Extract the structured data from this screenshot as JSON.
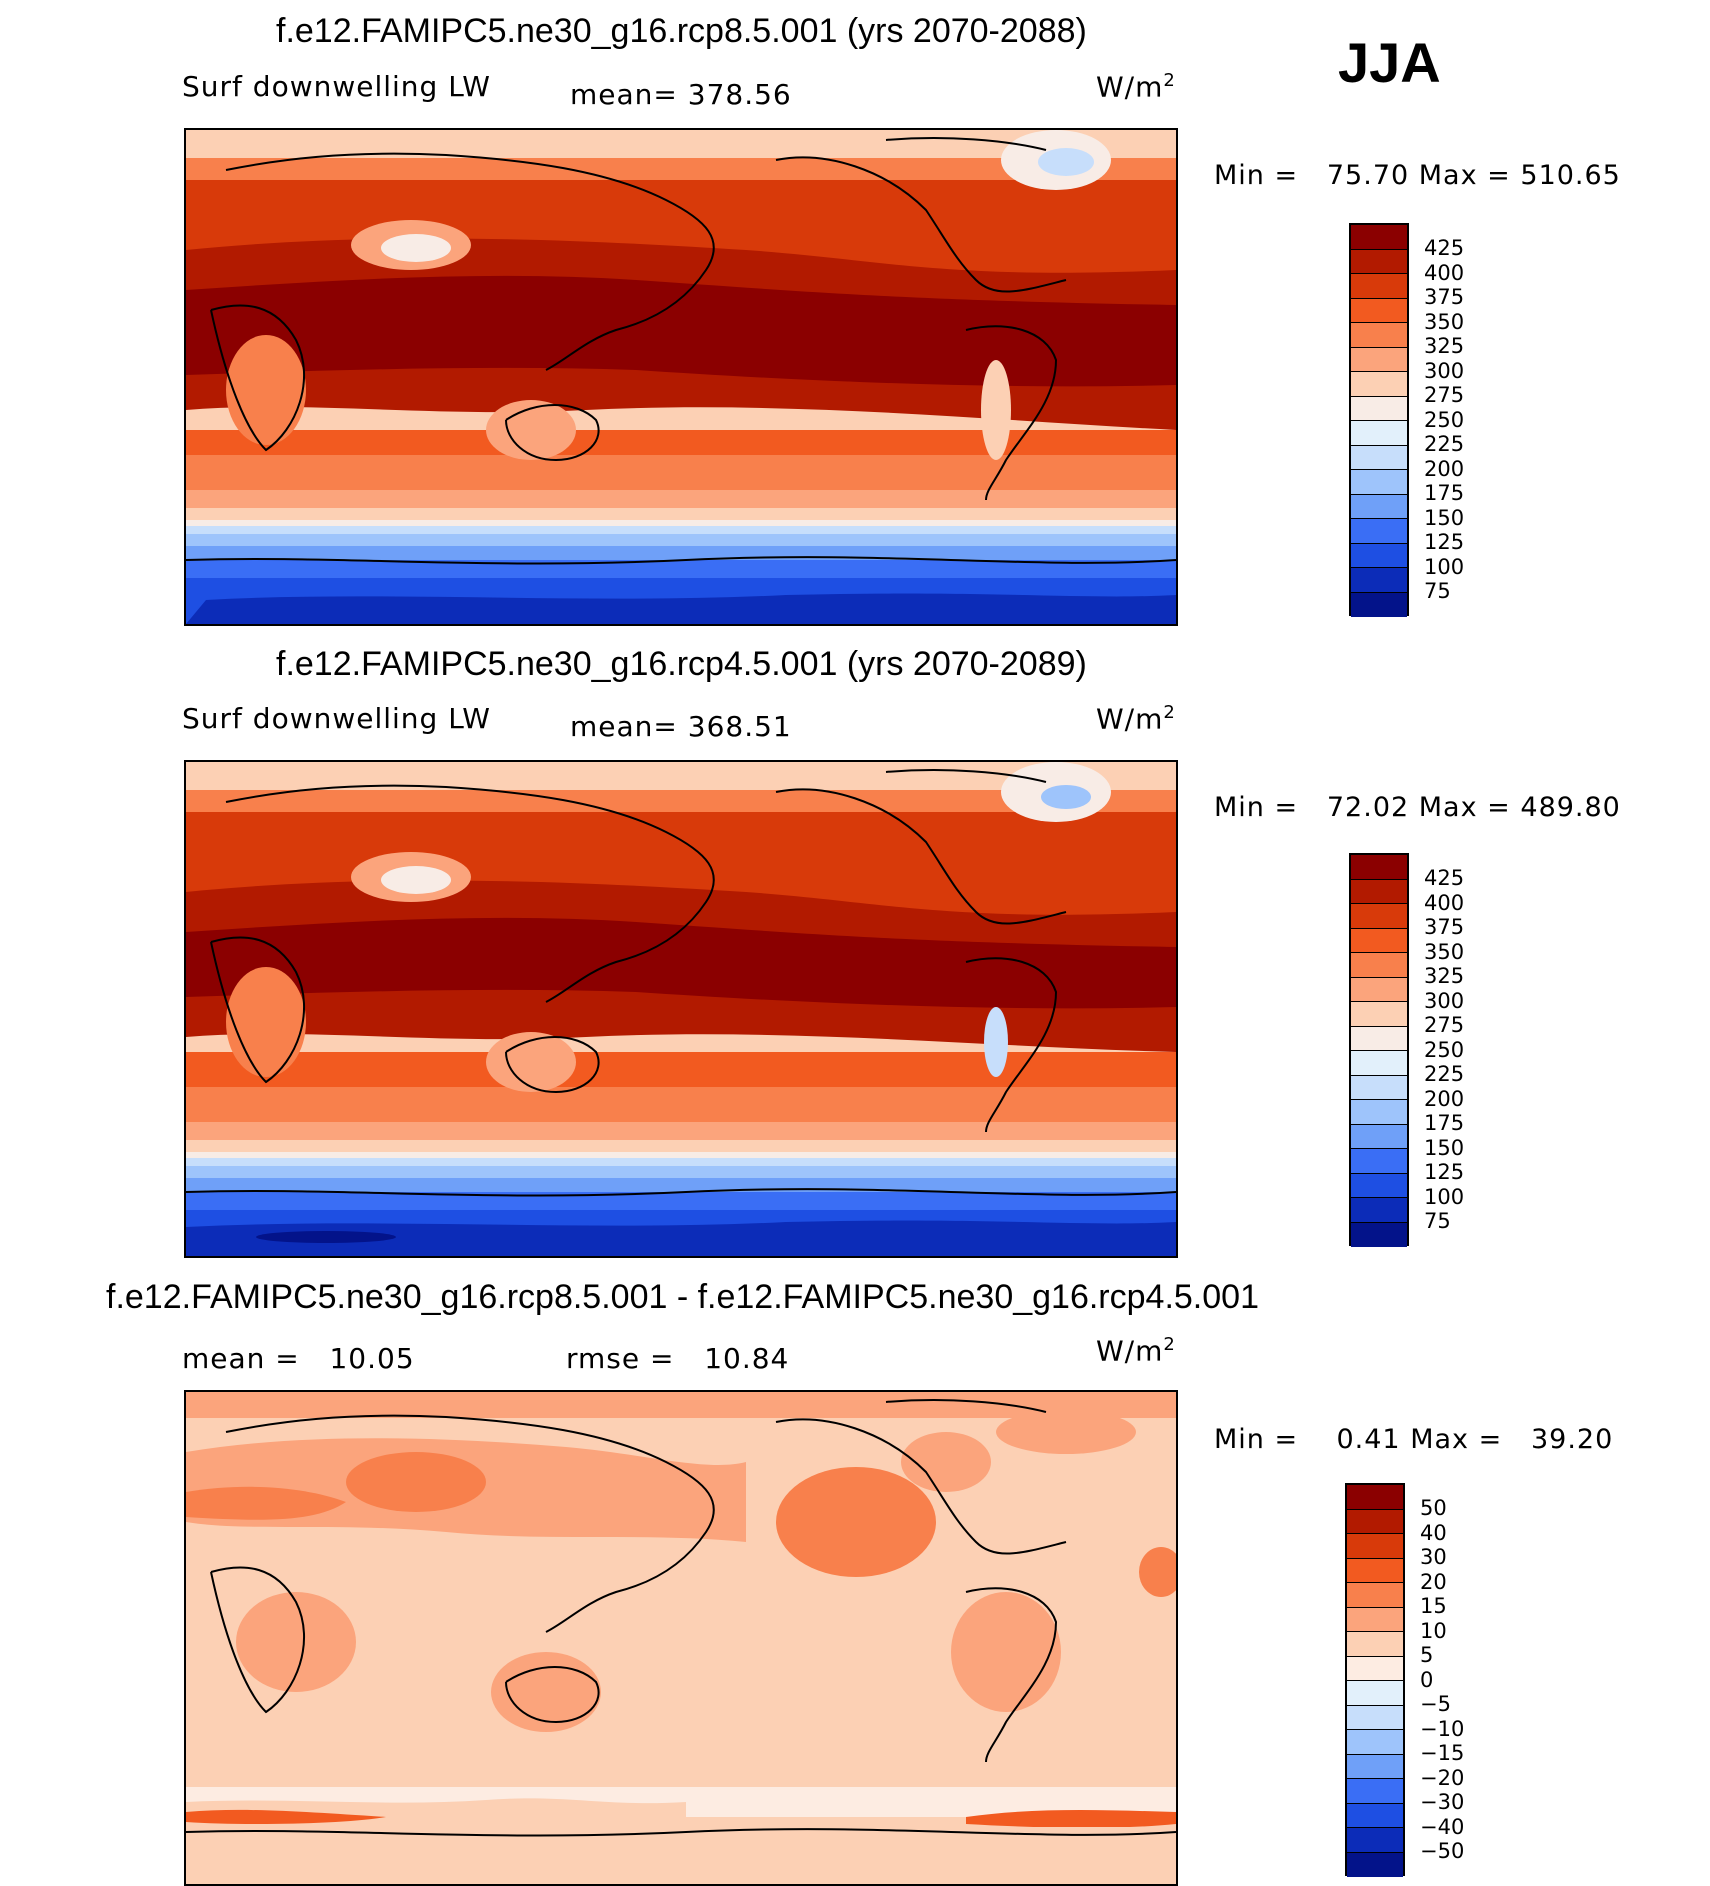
{
  "season": "JJA",
  "colors": {
    "abs_scale": [
      "#8b0000",
      "#b21a00",
      "#d83a0a",
      "#f25a20",
      "#f8804c",
      "#fba47c",
      "#fcd0b4",
      "#f8ece6",
      "#e2f0fb",
      "#c7defb",
      "#9ec4fb",
      "#6fa0f8",
      "#3a6ef5",
      "#1e4fe3",
      "#0c2cb8",
      "#03138a"
    ],
    "diff_scale": [
      "#8b0000",
      "#b21a00",
      "#d83a0a",
      "#f25a20",
      "#f8804c",
      "#fba47c",
      "#fcd0b4",
      "#fdece2",
      "#e2f0fb",
      "#c7defb",
      "#9ec4fb",
      "#6fa0f8",
      "#3a6ef5",
      "#1e4fe3",
      "#0c2cb8",
      "#03138a"
    ]
  },
  "panels": [
    {
      "title": "f.e12.FAMIPC5.ne30_g16.rcp8.5.001 (yrs 2070-2088)",
      "variable": "Surf downwelling LW",
      "mean_text": "mean= 378.56",
      "units": "W/m",
      "units_sup": "2",
      "min_label": "Min =",
      "min_value": "75.70",
      "max_label": "Max =",
      "max_value": "510.65",
      "ticks": [
        "425",
        "400",
        "375",
        "350",
        "325",
        "300",
        "275",
        "250",
        "225",
        "200",
        "175",
        "150",
        "125",
        "100",
        "75"
      ]
    },
    {
      "title": "f.e12.FAMIPC5.ne30_g16.rcp4.5.001 (yrs 2070-2089)",
      "variable": "Surf downwelling LW",
      "mean_text": "mean= 368.51",
      "units": "W/m",
      "units_sup": "2",
      "min_label": "Min =",
      "min_value": "72.02",
      "max_label": "Max =",
      "max_value": "489.80",
      "ticks": [
        "425",
        "400",
        "375",
        "350",
        "325",
        "300",
        "275",
        "250",
        "225",
        "200",
        "175",
        "150",
        "125",
        "100",
        "75"
      ]
    },
    {
      "title": "f.e12.FAMIPC5.ne30_g16.rcp8.5.001 - f.e12.FAMIPC5.ne30_g16.rcp4.5.001",
      "mean_label": "mean =",
      "mean_value": "10.05",
      "rmse_label": "rmse =",
      "rmse_value": "10.84",
      "units": "W/m",
      "units_sup": "2",
      "min_label": "Min =",
      "min_value": "0.41",
      "max_label": "Max =",
      "max_value": "39.20",
      "ticks": [
        "50",
        "40",
        "30",
        "20",
        "15",
        "10",
        "5",
        "0",
        "−5",
        "−10",
        "−15",
        "−20",
        "−30",
        "−40",
        "−50"
      ]
    }
  ]
}
